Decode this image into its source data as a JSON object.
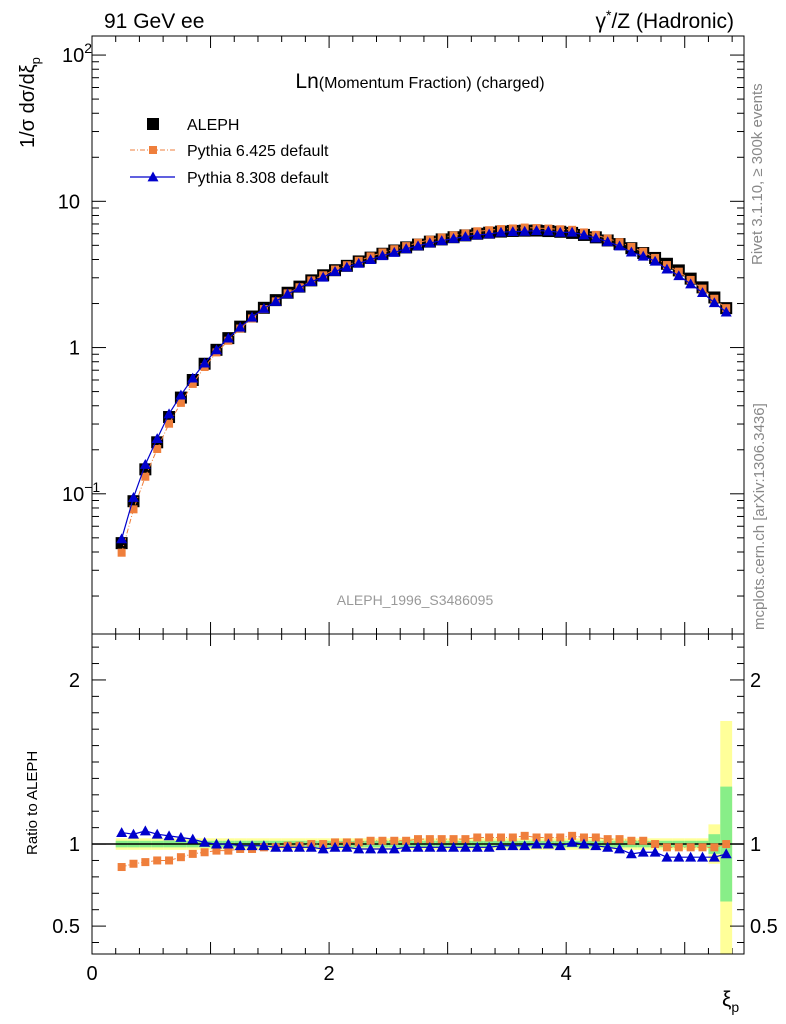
{
  "header": {
    "left": "91 GeV ee",
    "right_prefix": "γ",
    "right_sup": "*",
    "right_suffix": "/Z (Hadronic)"
  },
  "side": {
    "rivet": "Rivet 3.1.10, ≥ 300k events",
    "mcplots": "mcplots.cern.ch [arXiv:1306.3436]"
  },
  "chart_data": {
    "type": "scatter",
    "title": "Ln(Momentum Fraction) (charged)",
    "title_big": "Ln",
    "title_small": "(Momentum Fraction) (charged)",
    "analysis": "ALEPH_1996_S3486095",
    "ylabel": "1/σ dσ/dξp",
    "ylabel_main": "1/σ dσ/dξ",
    "ylabel_sub": "p",
    "ratio_ylabel": "Ratio to ALEPH",
    "xlabel_main": "ξ",
    "xlabel_sub": "p",
    "xlim": [
      0,
      5.5
    ],
    "ylim": [
      0.011,
      135
    ],
    "yscale": "log",
    "ratio_ylim": [
      0.33,
      2.28
    ],
    "x_ticks": [
      {
        "v": 0,
        "label": "0"
      },
      {
        "v": 2,
        "label": "2"
      },
      {
        "v": 4,
        "label": "4"
      }
    ],
    "y_ticks": [
      {
        "v": 0.1,
        "base": "10",
        "exp": "−1"
      },
      {
        "v": 1,
        "base": "1",
        "exp": ""
      },
      {
        "v": 10,
        "base": "10",
        "exp": ""
      },
      {
        "v": 100,
        "base": "10",
        "exp": "2"
      }
    ],
    "ratio_ticks": [
      {
        "v": 0.5,
        "label": "0.5"
      },
      {
        "v": 1,
        "label": "1"
      },
      {
        "v": 2,
        "label": "2"
      }
    ],
    "legend_position": "top-left",
    "x": [
      0.25,
      0.35,
      0.45,
      0.55,
      0.65,
      0.75,
      0.85,
      0.95,
      1.05,
      1.15,
      1.25,
      1.35,
      1.45,
      1.55,
      1.65,
      1.75,
      1.85,
      1.95,
      2.05,
      2.15,
      2.25,
      2.35,
      2.45,
      2.55,
      2.65,
      2.75,
      2.85,
      2.95,
      3.05,
      3.15,
      3.25,
      3.35,
      3.45,
      3.55,
      3.65,
      3.75,
      3.85,
      3.95,
      4.05,
      4.15,
      4.25,
      4.35,
      4.45,
      4.55,
      4.65,
      4.75,
      4.85,
      4.95,
      5.05,
      5.15,
      5.25,
      5.35
    ],
    "series": [
      {
        "name": "ALEPH",
        "style": "data",
        "color": "#000000",
        "values": [
          0.046,
          0.089,
          0.147,
          0.225,
          0.335,
          0.455,
          0.6,
          0.775,
          0.965,
          1.16,
          1.39,
          1.63,
          1.87,
          2.11,
          2.37,
          2.61,
          2.88,
          3.12,
          3.38,
          3.62,
          3.88,
          4.12,
          4.38,
          4.61,
          4.84,
          5.06,
          5.3,
          5.49,
          5.68,
          5.85,
          6.0,
          6.1,
          6.21,
          6.27,
          6.3,
          6.31,
          6.26,
          6.19,
          6.08,
          5.89,
          5.67,
          5.4,
          5.1,
          4.78,
          4.43,
          4.1,
          3.74,
          3.37,
          2.96,
          2.58,
          2.2,
          1.86
        ],
        "ratio_band_inner": 0.02,
        "ratio_band_outer": 0.035
      },
      {
        "name": "Pythia 6.425 default",
        "style": "dashdot-square",
        "color": "#ef7f3c",
        "ratio": [
          0.86,
          0.88,
          0.89,
          0.9,
          0.9,
          0.92,
          0.94,
          0.95,
          0.96,
          0.96,
          0.97,
          0.97,
          0.98,
          0.98,
          0.99,
          0.99,
          1.0,
          1.0,
          1.01,
          1.01,
          1.01,
          1.02,
          1.02,
          1.02,
          1.02,
          1.03,
          1.03,
          1.03,
          1.03,
          1.03,
          1.04,
          1.04,
          1.04,
          1.04,
          1.05,
          1.04,
          1.04,
          1.04,
          1.05,
          1.04,
          1.04,
          1.03,
          1.03,
          1.02,
          1.02,
          1.0,
          0.98,
          0.98,
          0.98,
          0.98,
          0.98,
          1.0
        ]
      },
      {
        "name": "Pythia 8.308 default",
        "style": "solid-triangle",
        "color": "#0000cc",
        "ratio": [
          1.07,
          1.06,
          1.08,
          1.06,
          1.05,
          1.04,
          1.03,
          1.01,
          1.0,
          1.0,
          0.99,
          0.99,
          0.99,
          0.98,
          0.98,
          0.98,
          0.98,
          0.97,
          0.98,
          0.98,
          0.97,
          0.97,
          0.97,
          0.97,
          0.98,
          0.98,
          0.98,
          0.98,
          0.98,
          0.98,
          0.98,
          0.98,
          0.99,
          0.99,
          0.99,
          1.0,
          1.0,
          0.99,
          1.01,
          1.0,
          0.99,
          0.98,
          0.97,
          0.94,
          0.95,
          0.95,
          0.92,
          0.92,
          0.92,
          0.92,
          0.92,
          0.94
        ]
      }
    ],
    "grid": false
  }
}
